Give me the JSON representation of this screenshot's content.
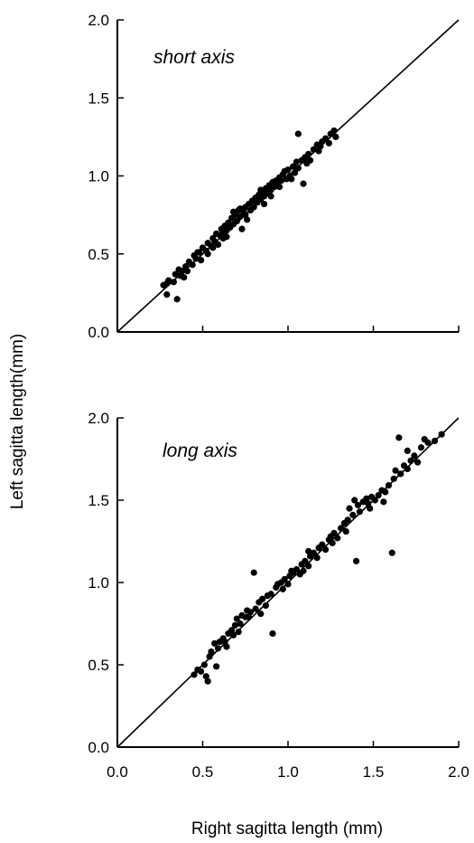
{
  "figure": {
    "ylabel": "Left sagitta length(mm)",
    "xlabel": "Right sagitta length (mm)"
  },
  "chart_data": [
    {
      "type": "scatter",
      "title": "short axis",
      "xlabel": "",
      "ylabel": "Left sagitta length(mm)",
      "xlim": [
        0,
        2.0
      ],
      "ylim": [
        0,
        2.0
      ],
      "xticks": [],
      "yticks": [
        "0.0",
        "0.5",
        "1.0",
        "1.5",
        "2.0"
      ],
      "grid": false,
      "reference_line": {
        "type": "identity",
        "from": [
          0,
          0
        ],
        "to": [
          2.0,
          2.0
        ]
      },
      "series": [
        {
          "points": [
            [
              0.27,
              0.3
            ],
            [
              0.29,
              0.31
            ],
            [
              0.3,
              0.33
            ],
            [
              0.29,
              0.24
            ],
            [
              0.35,
              0.21
            ],
            [
              0.34,
              0.37
            ],
            [
              0.36,
              0.4
            ],
            [
              0.37,
              0.36
            ],
            [
              0.38,
              0.39
            ],
            [
              0.4,
              0.42
            ],
            [
              0.41,
              0.39
            ],
            [
              0.42,
              0.45
            ],
            [
              0.44,
              0.43
            ],
            [
              0.45,
              0.49
            ],
            [
              0.46,
              0.47
            ],
            [
              0.48,
              0.51
            ],
            [
              0.49,
              0.46
            ],
            [
              0.5,
              0.54
            ],
            [
              0.52,
              0.52
            ],
            [
              0.53,
              0.57
            ],
            [
              0.55,
              0.55
            ],
            [
              0.56,
              0.6
            ],
            [
              0.57,
              0.58
            ],
            [
              0.58,
              0.63
            ],
            [
              0.59,
              0.56
            ],
            [
              0.6,
              0.62
            ],
            [
              0.61,
              0.66
            ],
            [
              0.62,
              0.6
            ],
            [
              0.63,
              0.68
            ],
            [
              0.64,
              0.65
            ],
            [
              0.65,
              0.7
            ],
            [
              0.66,
              0.67
            ],
            [
              0.67,
              0.73
            ],
            [
              0.68,
              0.69
            ],
            [
              0.69,
              0.75
            ],
            [
              0.7,
              0.71
            ],
            [
              0.71,
              0.78
            ],
            [
              0.72,
              0.74
            ],
            [
              0.73,
              0.66
            ],
            [
              0.74,
              0.77
            ],
            [
              0.75,
              0.8
            ],
            [
              0.76,
              0.72
            ],
            [
              0.77,
              0.82
            ],
            [
              0.78,
              0.78
            ],
            [
              0.79,
              0.84
            ],
            [
              0.8,
              0.8
            ],
            [
              0.81,
              0.86
            ],
            [
              0.82,
              0.83
            ],
            [
              0.83,
              0.88
            ],
            [
              0.84,
              0.85
            ],
            [
              0.85,
              0.9
            ],
            [
              0.86,
              0.87
            ],
            [
              0.87,
              0.92
            ],
            [
              0.88,
              0.89
            ],
            [
              0.89,
              0.94
            ],
            [
              0.9,
              0.91
            ],
            [
              0.91,
              0.96
            ],
            [
              0.92,
              0.93
            ],
            [
              0.93,
              0.97
            ],
            [
              0.94,
              0.95
            ],
            [
              0.95,
              0.99
            ],
            [
              0.96,
              0.97
            ],
            [
              0.97,
              1.01
            ],
            [
              0.99,
              0.98
            ],
            [
              1.0,
              1.04
            ],
            [
              1.01,
              1.0
            ],
            [
              1.03,
              1.06
            ],
            [
              1.04,
              1.02
            ],
            [
              1.05,
              1.09
            ],
            [
              1.06,
              1.05
            ],
            [
              1.08,
              1.1
            ],
            [
              1.09,
              0.95
            ],
            [
              1.1,
              1.12
            ],
            [
              1.12,
              1.14
            ],
            [
              1.13,
              1.1
            ],
            [
              1.15,
              1.17
            ],
            [
              1.17,
              1.2
            ],
            [
              1.18,
              1.16
            ],
            [
              1.2,
              1.22
            ],
            [
              1.22,
              1.24
            ],
            [
              1.24,
              1.21
            ],
            [
              1.25,
              1.27
            ],
            [
              1.27,
              1.29
            ],
            [
              1.28,
              1.25
            ],
            [
              1.06,
              1.27
            ],
            [
              0.56,
              0.54
            ],
            [
              0.64,
              0.61
            ],
            [
              0.72,
              0.79
            ],
            [
              0.84,
              0.91
            ],
            [
              0.47,
              0.51
            ],
            [
              0.39,
              0.35
            ],
            [
              0.53,
              0.5
            ],
            [
              0.62,
              0.64
            ],
            [
              0.75,
              0.75
            ],
            [
              0.9,
              0.87
            ],
            [
              0.98,
              1.03
            ],
            [
              1.11,
              1.08
            ],
            [
              0.33,
              0.32
            ],
            [
              0.68,
              0.77
            ],
            [
              0.86,
              0.82
            ],
            [
              0.95,
              0.93
            ],
            [
              1.02,
              0.98
            ],
            [
              1.19,
              1.19
            ]
          ]
        }
      ]
    },
    {
      "type": "scatter",
      "title": "long axis",
      "xlabel": "Right sagitta length (mm)",
      "ylabel": "Left sagitta length(mm)",
      "xlim": [
        0,
        2.0
      ],
      "ylim": [
        0,
        2.0
      ],
      "xticks": [
        "0.0",
        "0.5",
        "1.0",
        "1.5",
        "2.0"
      ],
      "yticks": [
        "0.0",
        "0.5",
        "1.0",
        "1.5",
        "2.0"
      ],
      "grid": false,
      "reference_line": {
        "type": "identity",
        "from": [
          0,
          0
        ],
        "to": [
          2.0,
          2.0
        ]
      },
      "series": [
        {
          "points": [
            [
              0.45,
              0.44
            ],
            [
              0.47,
              0.47
            ],
            [
              0.49,
              0.46
            ],
            [
              0.51,
              0.5
            ],
            [
              0.52,
              0.43
            ],
            [
              0.53,
              0.4
            ],
            [
              0.54,
              0.55
            ],
            [
              0.55,
              0.58
            ],
            [
              0.57,
              0.63
            ],
            [
              0.58,
              0.49
            ],
            [
              0.6,
              0.64
            ],
            [
              0.62,
              0.66
            ],
            [
              0.64,
              0.61
            ],
            [
              0.65,
              0.69
            ],
            [
              0.67,
              0.71
            ],
            [
              0.68,
              0.68
            ],
            [
              0.69,
              0.74
            ],
            [
              0.7,
              0.78
            ],
            [
              0.72,
              0.75
            ],
            [
              0.73,
              0.8
            ],
            [
              0.75,
              0.79
            ],
            [
              0.76,
              0.83
            ],
            [
              0.78,
              0.82
            ],
            [
              0.8,
              1.06
            ],
            [
              0.81,
              0.84
            ],
            [
              0.83,
              0.88
            ],
            [
              0.85,
              0.9
            ],
            [
              0.87,
              0.86
            ],
            [
              0.88,
              0.92
            ],
            [
              0.9,
              0.93
            ],
            [
              0.91,
              0.69
            ],
            [
              0.93,
              0.97
            ],
            [
              0.94,
              0.99
            ],
            [
              0.96,
              1.0
            ],
            [
              0.98,
              1.02
            ],
            [
              1.0,
              0.99
            ],
            [
              1.01,
              1.04
            ],
            [
              1.03,
              1.06
            ],
            [
              1.05,
              1.08
            ],
            [
              1.07,
              1.05
            ],
            [
              1.08,
              1.11
            ],
            [
              1.1,
              1.13
            ],
            [
              1.12,
              1.1
            ],
            [
              1.13,
              1.16
            ],
            [
              1.15,
              1.18
            ],
            [
              1.17,
              1.15
            ],
            [
              1.18,
              1.21
            ],
            [
              1.2,
              1.23
            ],
            [
              1.22,
              1.2
            ],
            [
              1.24,
              1.26
            ],
            [
              1.25,
              1.28
            ],
            [
              1.27,
              1.3
            ],
            [
              1.29,
              1.27
            ],
            [
              1.31,
              1.33
            ],
            [
              1.33,
              1.36
            ],
            [
              1.35,
              1.38
            ],
            [
              1.36,
              1.45
            ],
            [
              1.38,
              1.41
            ],
            [
              1.4,
              1.13
            ],
            [
              1.41,
              1.47
            ],
            [
              1.42,
              1.43
            ],
            [
              1.44,
              1.49
            ],
            [
              1.46,
              1.51
            ],
            [
              1.47,
              1.48
            ],
            [
              1.49,
              1.52
            ],
            [
              1.51,
              1.5
            ],
            [
              1.53,
              1.53
            ],
            [
              1.55,
              1.56
            ],
            [
              1.57,
              1.55
            ],
            [
              1.59,
              1.59
            ],
            [
              1.61,
              1.18
            ],
            [
              1.62,
              1.63
            ],
            [
              1.63,
              1.68
            ],
            [
              1.65,
              1.88
            ],
            [
              1.66,
              1.66
            ],
            [
              1.68,
              1.71
            ],
            [
              1.7,
              1.69
            ],
            [
              1.72,
              1.74
            ],
            [
              1.74,
              1.77
            ],
            [
              1.76,
              1.73
            ],
            [
              1.78,
              1.82
            ],
            [
              1.8,
              1.87
            ],
            [
              1.82,
              1.85
            ],
            [
              1.86,
              1.86
            ],
            [
              1.9,
              1.9
            ],
            [
              1.7,
              1.8
            ],
            [
              1.48,
              1.45
            ],
            [
              1.39,
              1.5
            ],
            [
              1.26,
              1.24
            ],
            [
              1.09,
              1.07
            ],
            [
              0.97,
              0.96
            ],
            [
              0.84,
              0.81
            ],
            [
              0.71,
              0.7
            ],
            [
              0.63,
              0.64
            ],
            [
              0.59,
              0.6
            ],
            [
              1.12,
              1.19
            ],
            [
              1.34,
              1.31
            ],
            [
              1.56,
              1.49
            ],
            [
              1.02,
              1.07
            ],
            [
              0.77,
              0.79
            ]
          ]
        }
      ]
    }
  ]
}
